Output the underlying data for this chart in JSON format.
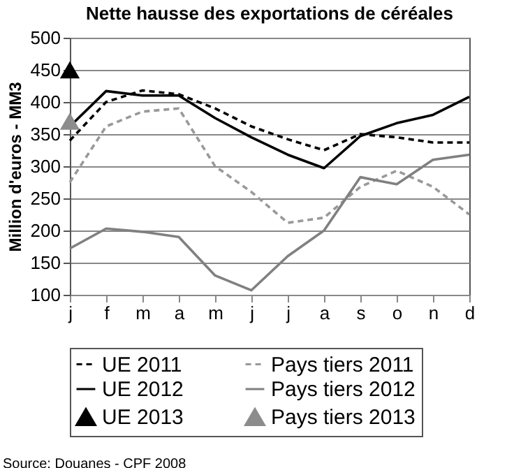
{
  "chart_data": {
    "type": "line",
    "title": "Nette hausse des exportations de céréales",
    "ylabel": "Million d'euros - MM3",
    "categories": [
      "j",
      "f",
      "m",
      "a",
      "m",
      "j",
      "j",
      "a",
      "s",
      "o",
      "n",
      "d"
    ],
    "series": [
      {
        "name": "UE 2011",
        "color": "#000000",
        "line_style": "dashed",
        "values": [
          340,
          400,
          418,
          412,
          390,
          362,
          342,
          325,
          350,
          345,
          337,
          337
        ]
      },
      {
        "name": "Pays tiers 2011",
        "color": "#999999",
        "line_style": "dashed",
        "values": [
          275,
          362,
          385,
          390,
          300,
          260,
          212,
          220,
          268,
          293,
          268,
          225
        ]
      },
      {
        "name": "UE 2012",
        "color": "#000000",
        "line_style": "solid",
        "values": [
          362,
          417,
          410,
          410,
          375,
          345,
          318,
          297,
          347,
          367,
          380,
          408
        ]
      },
      {
        "name": "Pays tiers 2012",
        "color": "#808080",
        "line_style": "solid",
        "values": [
          172,
          203,
          198,
          190,
          130,
          107,
          160,
          200,
          283,
          272,
          310,
          318
        ]
      },
      {
        "name": "UE 2013",
        "type": "scatter",
        "marker": "triangle",
        "color": "#000000",
        "values": [
          450,
          null,
          null,
          null,
          null,
          null,
          null,
          null,
          null,
          null,
          null,
          null
        ]
      },
      {
        "name": "Pays tiers 2013",
        "type": "scatter",
        "marker": "triangle",
        "color": "#8c8c8c",
        "values": [
          370,
          null,
          null,
          null,
          null,
          null,
          null,
          null,
          null,
          null,
          null,
          null
        ]
      }
    ],
    "ylim": [
      100,
      500
    ],
    "yticks": [
      100,
      150,
      200,
      250,
      300,
      350,
      400,
      450,
      500
    ],
    "grid": "y",
    "legend": "bottom",
    "annotations": [
      "Source: Douanes - CPF 2008"
    ]
  }
}
